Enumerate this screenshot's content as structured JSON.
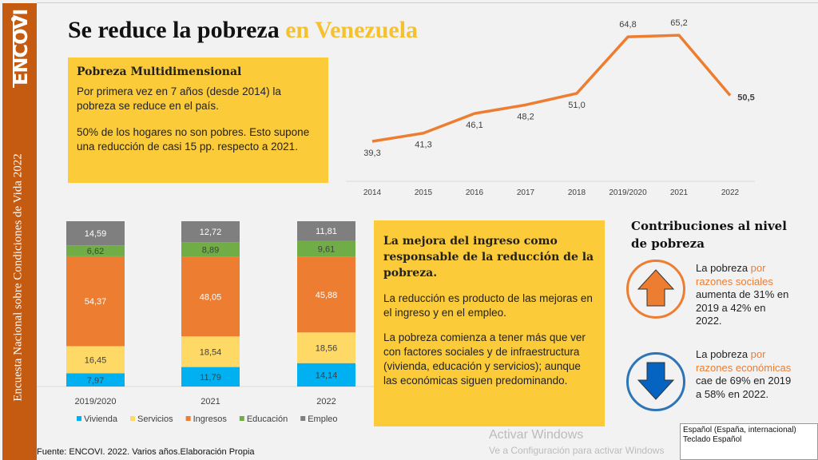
{
  "sidebar": {
    "logo": "ENCOVI",
    "vertical_title": "Encuesta Nacional sobre Condiciones de Vida 2022",
    "color": "#c55a11"
  },
  "title": {
    "main": "Se reduce la pobreza ",
    "accent": "en Venezuela",
    "accent_color": "#f6c12f"
  },
  "box1": {
    "heading": "Pobreza Multidimensional",
    "p1": "Por primera vez en 7 años (desde 2014) la pobreza se reduce en el país.",
    "p2": "50% de los hogares no son pobres. Esto supone una reducción de casi 15 pp. respecto a 2021."
  },
  "box2": {
    "heading": "La mejora del ingreso como responsable de la reducción de la pobreza.",
    "p1": "La reducción es producto de las mejoras en el ingreso y en el empleo.",
    "p2": "La pobreza comienza a tener más que ver con factores sociales y de infraestructura (vivienda, educación y servicios); aunque las económicas siguen predominando."
  },
  "contrib": {
    "title": "Contribuciones al nivel de pobreza",
    "up": {
      "icon": "arrow-up-icon",
      "pre": "La pobreza ",
      "hl": "por razones sociales",
      "post": " aumenta de 31% en 2019 a 42% en 2022."
    },
    "down": {
      "icon": "arrow-down-icon",
      "pre": "La pobreza ",
      "hl": "por razones económicas",
      "post": " cae de 69% en 2019 a 58% en 2022."
    }
  },
  "source": "Fuente: ENCOVI. 2022. Varios años.Elaboración Propia",
  "watermark": {
    "line1": "Activar Windows",
    "line2": "Ve a Configuración para activar Windows"
  },
  "tooltip": {
    "line1": "Español (España, internacional)",
    "line2": "Teclado Español"
  },
  "chart_data": [
    {
      "type": "line",
      "categories": [
        "2014",
        "2015",
        "2016",
        "2017",
        "2018",
        "2019/2020",
        "2021",
        "2022"
      ],
      "values": [
        39.3,
        41.3,
        46.1,
        48.2,
        51.0,
        64.8,
        65.2,
        50.5
      ],
      "labels": [
        "39,3",
        "41,3",
        "46,1",
        "48,2",
        "51,0",
        "64,8",
        "65,2",
        "50,5"
      ],
      "color": "#ed7d31",
      "grid": false
    },
    {
      "type": "bar",
      "stacked": true,
      "categories": [
        "2019/2020",
        "2021",
        "2022"
      ],
      "series": [
        {
          "name": "Vivienda",
          "color": "#00b0f0",
          "values": [
            7.97,
            11.79,
            14.14
          ],
          "labels": [
            "7,97",
            "11,79",
            "14,14"
          ]
        },
        {
          "name": "Servicios",
          "color": "#ffd966",
          "values": [
            16.45,
            18.54,
            18.56
          ],
          "labels": [
            "16,45",
            "18,54",
            "18,56"
          ]
        },
        {
          "name": "Ingresos",
          "color": "#ed7d31",
          "values": [
            54.37,
            48.05,
            45.88
          ],
          "labels": [
            "54,37",
            "48,05",
            "45,88"
          ]
        },
        {
          "name": "Educación",
          "color": "#70ad47",
          "values": [
            6.62,
            8.89,
            9.61
          ],
          "labels": [
            "6,62",
            "8,89",
            "9,61"
          ]
        },
        {
          "name": "Empleo",
          "color": "#7f7f7f",
          "values": [
            14.59,
            12.72,
            11.81
          ],
          "labels": [
            "14,59",
            "12,72",
            "11,81"
          ]
        }
      ],
      "legend": "bottom",
      "grid": false
    }
  ]
}
